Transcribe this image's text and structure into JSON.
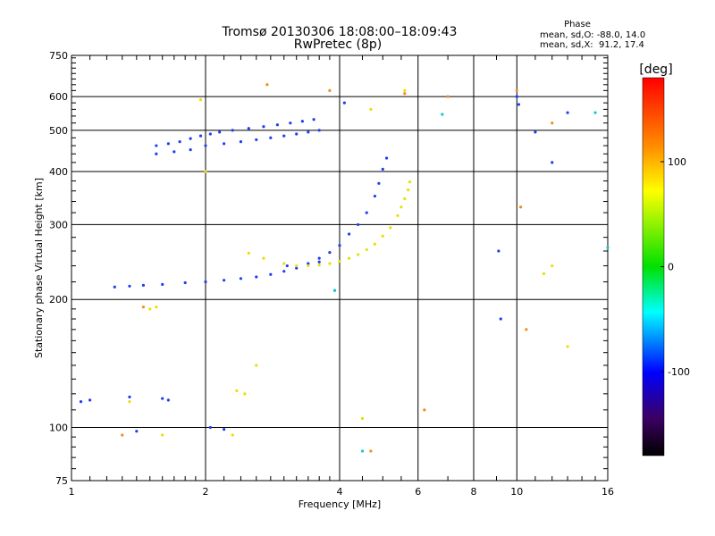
{
  "chart_data": {
    "type": "scatter",
    "title": "Tromsø 20130306 18:08:00–18:09:43",
    "subtitle": "RwPretec (8p)",
    "phase_info": {
      "heading": "Phase",
      "line_o": "mean, sd,O: -88.0, 14.0",
      "line_x": "mean, sd,X:  91.2, 17.4"
    },
    "xlabel": "Frequency [MHz]",
    "ylabel": "Stationary phase Virtual Height [km]",
    "x_scale": "log",
    "y_scale": "log",
    "xlim": [
      1,
      16
    ],
    "ylim": [
      75,
      750
    ],
    "x_ticks": [
      1,
      2,
      4,
      6,
      8,
      10,
      16
    ],
    "x_tick_labels": [
      "1",
      "2",
      "4",
      "6",
      "8",
      "10",
      "16"
    ],
    "y_ticks": [
      75,
      100,
      200,
      300,
      400,
      500,
      600,
      750
    ],
    "y_tick_labels": [
      "75",
      "100",
      "200",
      "300",
      "400",
      "500",
      "600",
      "750"
    ],
    "grid": true,
    "colorbar": {
      "label": "[deg]",
      "range": [
        -180,
        180
      ],
      "ticks": [
        100,
        0,
        -100
      ],
      "tick_labels": [
        "100",
        "0",
        "-100"
      ]
    },
    "series": [
      {
        "mode": "O",
        "phase_deg": -88,
        "color": "#1e3ef0",
        "x": [
          1.25,
          1.35,
          1.45,
          1.6,
          1.8,
          2.0,
          2.2,
          2.4,
          2.6,
          2.8,
          3.0,
          3.2,
          3.4,
          3.6,
          3.8,
          4.0,
          4.2,
          4.4,
          4.6,
          4.8,
          4.9,
          5.0,
          5.1
        ],
        "y": [
          214,
          215,
          216,
          217,
          219,
          220,
          222,
          224,
          226,
          229,
          233,
          237,
          243,
          250,
          258,
          268,
          285,
          300,
          320,
          350,
          375,
          405,
          430
        ]
      },
      {
        "mode": "X",
        "phase_deg": 91,
        "color": "#e8e000",
        "x": [
          2.5,
          2.7,
          3.0,
          3.2,
          3.4,
          3.6,
          3.8,
          4.0,
          4.2,
          4.4,
          4.6,
          4.8,
          5.0,
          5.2,
          5.4,
          5.5,
          5.6,
          5.7,
          5.75
        ],
        "y": [
          257,
          250,
          243,
          240,
          240,
          241,
          243,
          246,
          250,
          255,
          262,
          270,
          282,
          295,
          315,
          330,
          345,
          362,
          378
        ]
      },
      {
        "mode": "F2 echo",
        "phase_deg": -88,
        "color": "#1e3ef0",
        "x": [
          1.55,
          1.65,
          1.75,
          1.85,
          1.95,
          2.05,
          2.15,
          2.3,
          2.5,
          2.7,
          2.9,
          3.1,
          3.3,
          3.5
        ],
        "y": [
          460,
          465,
          470,
          478,
          485,
          490,
          495,
          500,
          505,
          510,
          515,
          520,
          525,
          530
        ]
      },
      {
        "mode": "F2 echo",
        "phase_deg": -88,
        "color": "#1e3ef0",
        "x": [
          1.55,
          1.7,
          1.85,
          2.0,
          2.2,
          2.4,
          2.6,
          2.8,
          3.0,
          3.2,
          3.4,
          3.6
        ],
        "y": [
          440,
          445,
          450,
          460,
          465,
          470,
          475,
          480,
          485,
          490,
          495,
          500
        ]
      },
      {
        "mode": "scattered echoes",
        "phase_deg": -100,
        "color": "#1e3ef0",
        "x": [
          1.05,
          1.1,
          1.35,
          1.4,
          1.6,
          1.65,
          2.05,
          2.2,
          3.05,
          3.6,
          3.9,
          4.1,
          9.1,
          9.2,
          10.0,
          10.1,
          11.0,
          12.0,
          13.0
        ],
        "y": [
          115,
          116,
          118,
          98,
          117,
          116,
          100,
          99,
          240,
          245,
          210,
          580,
          260,
          180,
          600,
          575,
          495,
          420,
          550
        ]
      },
      {
        "mode": "scattered echoes",
        "phase_deg": 100,
        "color": "#e8e000",
        "x": [
          1.35,
          1.5,
          1.55,
          1.6,
          1.95,
          2.0,
          2.3,
          2.35,
          2.45,
          2.6,
          4.5,
          4.7,
          5.6,
          11.5,
          12.0,
          13.0
        ],
        "y": [
          115,
          190,
          192,
          96,
          590,
          400,
          96,
          122,
          120,
          140,
          105,
          560,
          620,
          230,
          240,
          155
        ]
      },
      {
        "mode": "scattered echoes",
        "phase_deg": 140,
        "color": "#f28c1e",
        "x": [
          1.3,
          1.45,
          2.75,
          3.8,
          4.7,
          5.6,
          6.2,
          7.0,
          10.0,
          10.2,
          10.5,
          12.0
        ],
        "y": [
          96,
          192,
          640,
          620,
          88,
          610,
          110,
          600,
          620,
          330,
          170,
          520
        ]
      },
      {
        "mode": "scattered echoes",
        "phase_deg": 20,
        "color": "#14c8c8",
        "x": [
          3.9,
          4.5,
          6.8,
          15.0,
          16.0
        ],
        "y": [
          210,
          88,
          545,
          550,
          265
        ]
      }
    ]
  }
}
